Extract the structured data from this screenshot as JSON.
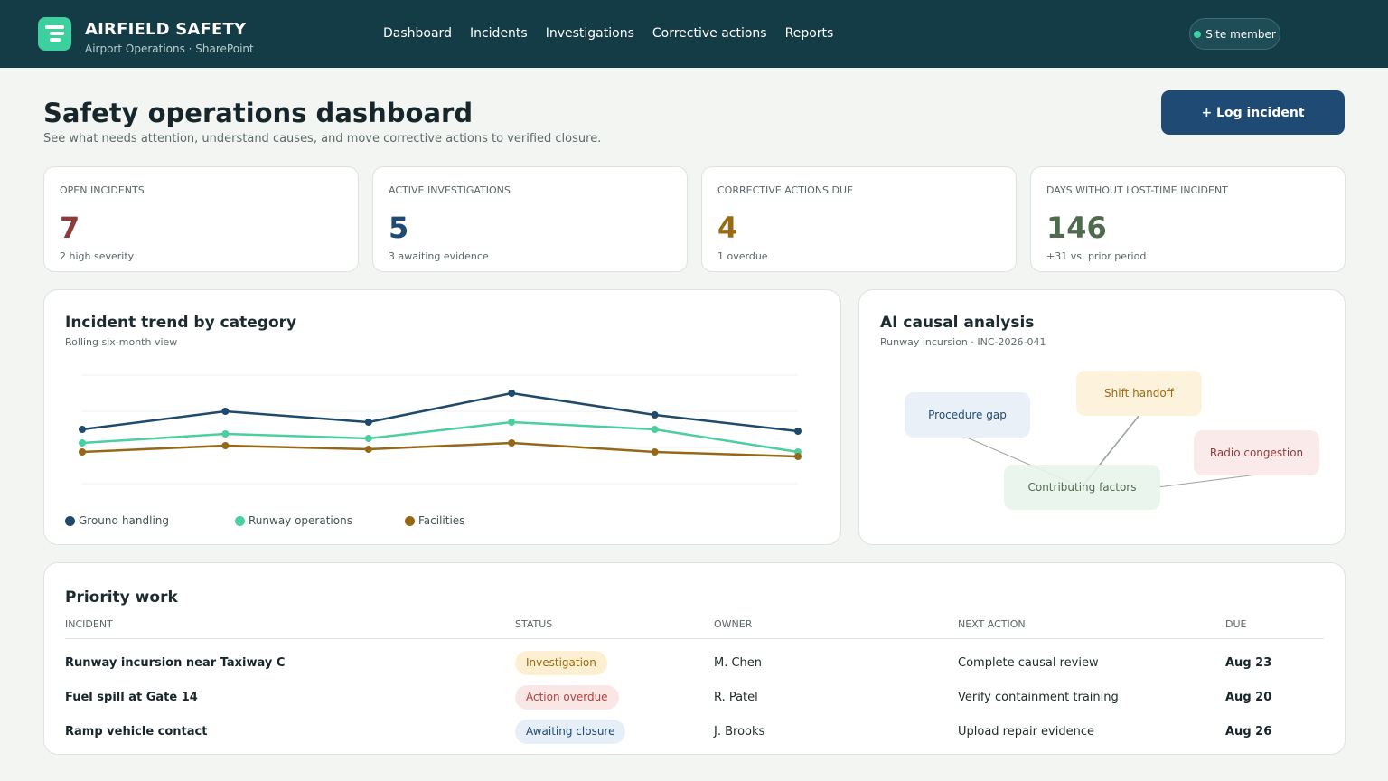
{
  "header": {
    "brand_title": "AIRFIELD SAFETY",
    "brand_subtitle": "Airport Operations · SharePoint",
    "nav": [
      "Dashboard",
      "Incidents",
      "Investigations",
      "Corrective actions",
      "Reports"
    ],
    "member_label": "Site member",
    "brand_color": "#3ecf9e",
    "bar_color": "#143c46"
  },
  "page": {
    "title": "Safety operations dashboard",
    "subtitle": "See what needs attention, understand causes, and move corrective actions to verified closure.",
    "log_button": "+ Log incident"
  },
  "kpis": [
    {
      "label": "OPEN INCIDENTS",
      "value": "7",
      "note": "2 high severity",
      "color": "#8f3a3a"
    },
    {
      "label": "ACTIVE INVESTIGATIONS",
      "value": "5",
      "note": "3 awaiting evidence",
      "color": "#1f4a73"
    },
    {
      "label": "CORRECTIVE ACTIONS DUE",
      "value": "4",
      "note": "1 overdue",
      "color": "#9a6a12"
    },
    {
      "label": "DAYS WITHOUT LOST-TIME INCIDENT",
      "value": "146",
      "note": "+31 vs. prior period",
      "color": "#4e6b4e"
    }
  ],
  "trend": {
    "title": "Incident trend by category",
    "subtitle": "Rolling six-month view"
  },
  "chart_data": {
    "type": "line",
    "x": [
      1,
      2,
      3,
      4,
      5,
      6
    ],
    "ylim": [
      0,
      12
    ],
    "grid": true,
    "legend": "bottom-left",
    "series": [
      {
        "name": "Ground handling",
        "color": "#1f4a6b",
        "values": [
          6,
          8,
          6.8,
          10,
          7.6,
          5.8
        ]
      },
      {
        "name": "Runway operations",
        "color": "#4ccf9f",
        "values": [
          4.5,
          5.5,
          5,
          6.8,
          6,
          3.5
        ]
      },
      {
        "name": "Facilities",
        "color": "#956818",
        "values": [
          3.5,
          4.2,
          3.8,
          4.5,
          3.5,
          3
        ]
      }
    ]
  },
  "causal": {
    "title": "AI causal analysis",
    "subtitle": "Runway incursion · INC-2026-041",
    "center": "Contributing factors",
    "factors": [
      "Procedure gap",
      "Shift handoff",
      "Radio congestion"
    ]
  },
  "priority": {
    "title": "Priority work",
    "columns": [
      "INCIDENT",
      "STATUS",
      "OWNER",
      "NEXT ACTION",
      "DUE"
    ],
    "rows": [
      {
        "incident": "Runway incursion near Taxiway C",
        "status": "Investigation",
        "owner": "M. Chen",
        "next": "Complete causal review",
        "due": "Aug 23"
      },
      {
        "incident": "Fuel spill at Gate 14",
        "status": "Action overdue",
        "owner": "R. Patel",
        "next": "Verify containment training",
        "due": "Aug 20"
      },
      {
        "incident": "Ramp vehicle contact",
        "status": "Awaiting closure",
        "owner": "J. Brooks",
        "next": "Upload repair evidence",
        "due": "Aug 26"
      }
    ]
  }
}
